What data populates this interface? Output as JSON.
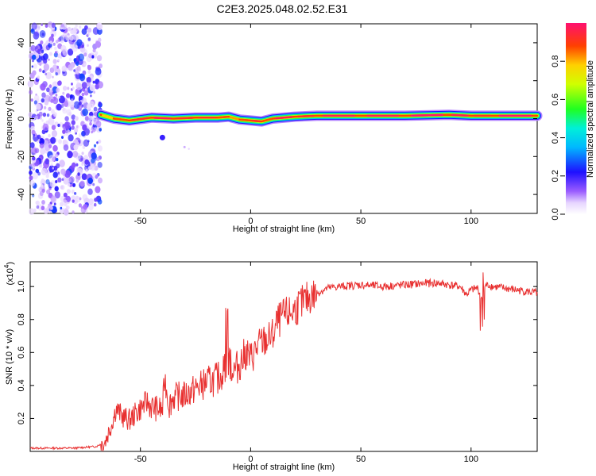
{
  "title": "C2E3.2025.048.02.52.E31",
  "chart_data": [
    {
      "type": "heatmap",
      "xlabel": "Height of straight line (km)",
      "ylabel": "Frequency (Hz)",
      "xlim": [
        -100,
        130
      ],
      "ylim": [
        -50,
        50
      ],
      "xticks": [
        -50,
        0,
        50,
        100
      ],
      "yticks": [
        -40,
        -20,
        0,
        20,
        40
      ],
      "noise_region_x": [
        -100,
        -68
      ],
      "signal_band": [
        {
          "x": -68,
          "f": 2.0,
          "a": 0.65
        },
        {
          "x": -62,
          "f": 0.0,
          "a": 0.75
        },
        {
          "x": -55,
          "f": -1.0,
          "a": 0.8
        },
        {
          "x": -45,
          "f": 0.5,
          "a": 0.85
        },
        {
          "x": -35,
          "f": 0.0,
          "a": 0.8
        },
        {
          "x": -25,
          "f": 0.5,
          "a": 0.8
        },
        {
          "x": -15,
          "f": 0.5,
          "a": 0.75
        },
        {
          "x": -10,
          "f": 1.0,
          "a": 0.7
        },
        {
          "x": -5,
          "f": -0.5,
          "a": 0.75
        },
        {
          "x": 0,
          "f": -1.0,
          "a": 0.8
        },
        {
          "x": 5,
          "f": -1.5,
          "a": 0.75
        },
        {
          "x": 10,
          "f": 0.0,
          "a": 0.85
        },
        {
          "x": 20,
          "f": 1.0,
          "a": 0.8
        },
        {
          "x": 30,
          "f": 1.5,
          "a": 0.85
        },
        {
          "x": 50,
          "f": 1.5,
          "a": 0.85
        },
        {
          "x": 70,
          "f": 1.5,
          "a": 0.9
        },
        {
          "x": 90,
          "f": 2.0,
          "a": 0.85
        },
        {
          "x": 100,
          "f": 1.5,
          "a": 0.8
        },
        {
          "x": 110,
          "f": 1.5,
          "a": 0.9
        },
        {
          "x": 130,
          "f": 1.5,
          "a": 0.85
        }
      ],
      "colorbar": {
        "label": "Normalized spectral amplitude",
        "range": [
          0.0,
          1.0
        ],
        "ticks": [
          0.0,
          0.2,
          0.4,
          0.6,
          0.8
        ]
      }
    },
    {
      "type": "line",
      "xlabel": "Height of straight line (km)",
      "ylabel": "SNR (10 * v/v)",
      "y_exponent_label": "(x10",
      "y_exponent_power": "4",
      "y_exponent_close": ")",
      "xlim": [
        -100,
        130
      ],
      "ylim": [
        0,
        1.15
      ],
      "xticks": [
        -50,
        0,
        50,
        100
      ],
      "yticks": [
        0.2,
        0.4,
        0.6,
        0.8,
        1.0
      ],
      "ytick_labels": [
        "0.2",
        "0.4",
        "0.6",
        "0.8",
        "1.0"
      ],
      "series": [
        {
          "color": "#e83030",
          "x": [
            -100,
            -90,
            -80,
            -70,
            -66,
            -63,
            -61,
            -58,
            -55,
            -50,
            -47,
            -45,
            -40,
            -39,
            -37,
            -35,
            -30,
            -25,
            -20,
            -15,
            -12,
            -10,
            -8,
            -5,
            -2,
            0,
            3,
            5,
            8,
            10,
            12,
            15,
            18,
            20,
            25,
            30,
            35,
            40,
            50,
            60,
            70,
            80,
            85,
            90,
            95,
            98,
            100,
            103,
            105,
            106,
            108,
            110,
            115,
            120,
            125,
            130
          ],
          "y": [
            0.02,
            0.02,
            0.02,
            0.03,
            0.06,
            0.17,
            0.26,
            0.21,
            0.19,
            0.26,
            0.3,
            0.27,
            0.25,
            0.45,
            0.28,
            0.33,
            0.34,
            0.38,
            0.42,
            0.44,
            0.5,
            0.55,
            0.48,
            0.53,
            0.6,
            0.56,
            0.63,
            0.66,
            0.68,
            0.7,
            0.78,
            0.82,
            0.84,
            0.86,
            0.92,
            0.96,
            0.99,
            1.0,
            1.01,
            1.0,
            1.01,
            1.02,
            1.02,
            1.01,
            1.0,
            0.95,
            0.98,
            0.99,
            0.92,
            1.0,
            1.01,
            1.0,
            0.99,
            0.98,
            0.97,
            0.96
          ]
        }
      ]
    }
  ]
}
